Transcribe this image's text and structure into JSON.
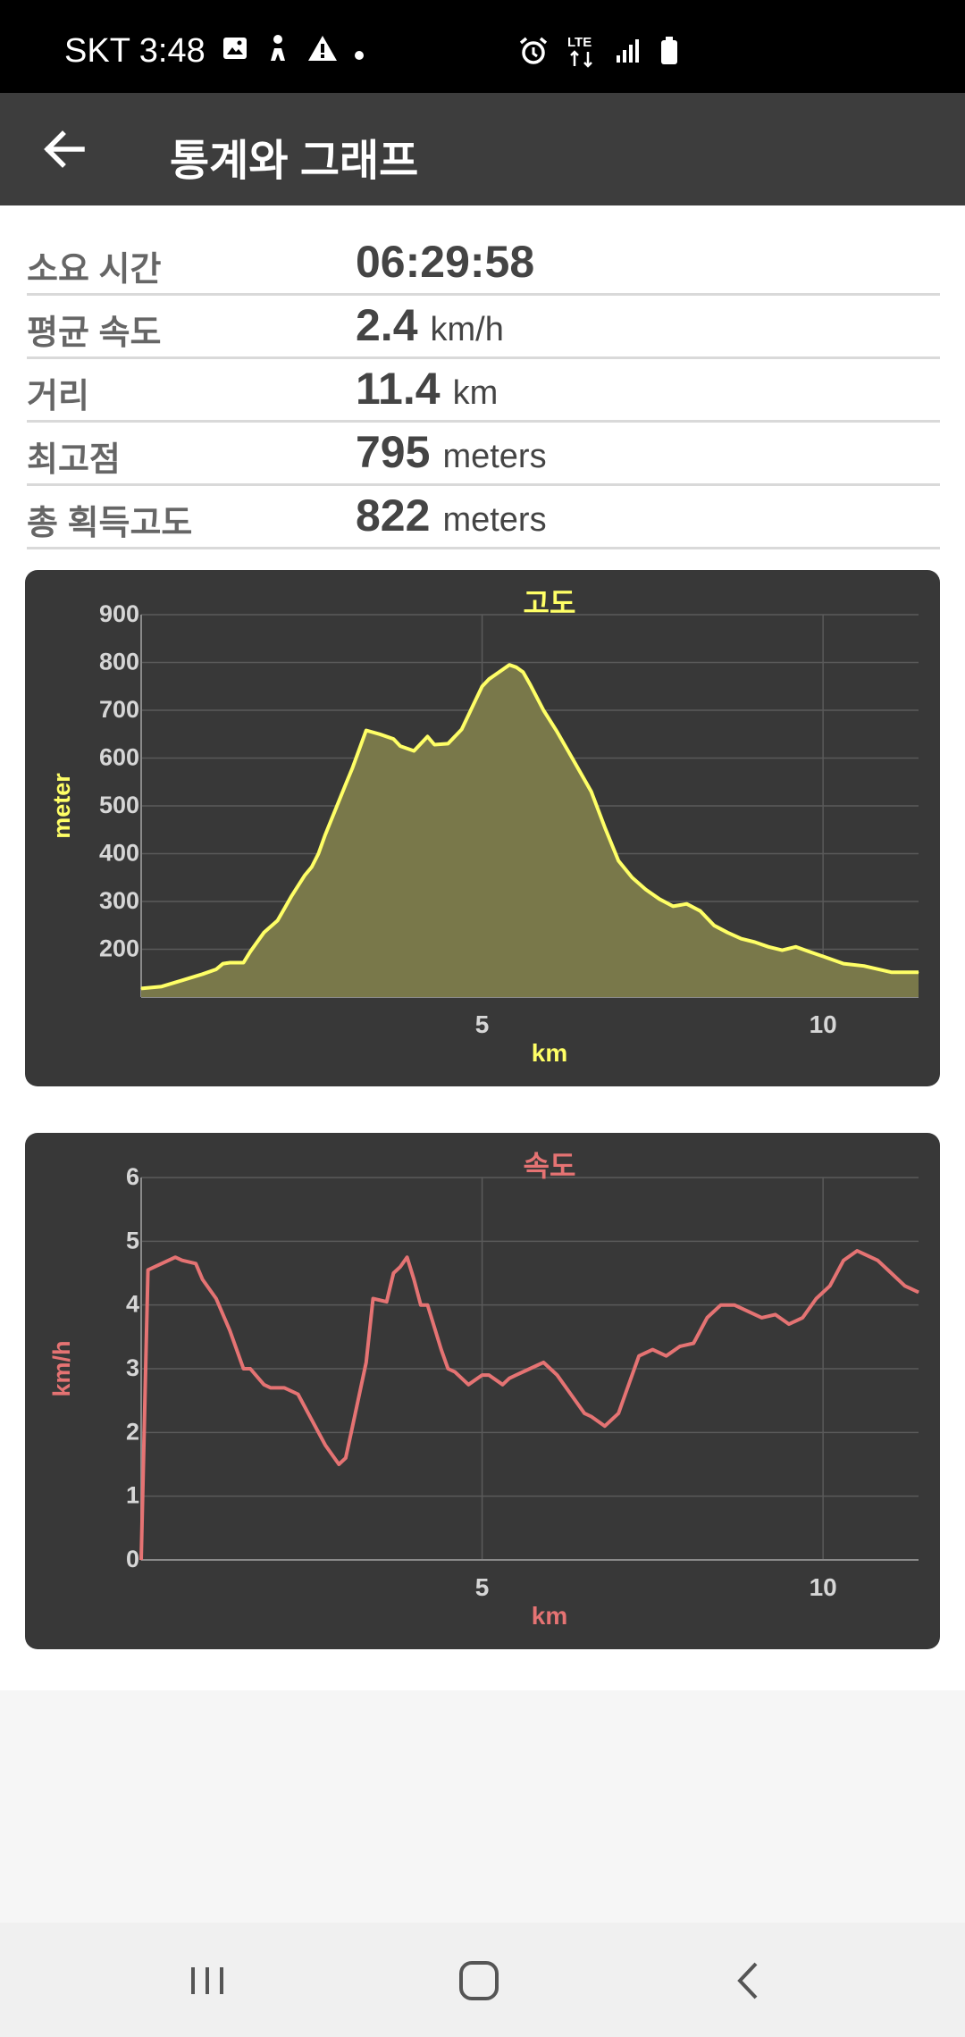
{
  "status_bar": {
    "carrier_time": "SKT 3:48",
    "left_icons": [
      "image-icon",
      "person-icon",
      "warning-icon",
      "dot-icon"
    ],
    "right_icons": [
      "alarm-icon",
      "lte-icon",
      "signal-icon",
      "battery-icon"
    ],
    "lte_label": "LTE"
  },
  "app_bar": {
    "title": "통계와 그래프",
    "back_icon": "arrow-left-icon"
  },
  "stats": [
    {
      "label": "소요 시간",
      "value": "06:29:58",
      "unit": ""
    },
    {
      "label": "평균 속도",
      "value": "2.4",
      "unit": "km/h"
    },
    {
      "label": "거리",
      "value": "11.4",
      "unit": "km"
    },
    {
      "label": "최고점",
      "value": "795",
      "unit": "meters"
    },
    {
      "label": "총 획득고도",
      "value": "822",
      "unit": "meters"
    }
  ],
  "chart_data": [
    {
      "type": "area",
      "title": "고도",
      "xlabel": "km",
      "ylabel": "meter",
      "xlim": [
        0,
        11.4
      ],
      "ylim": [
        100,
        900
      ],
      "xticks": [
        5,
        10
      ],
      "yticks": [
        200,
        300,
        400,
        500,
        600,
        700,
        800,
        900
      ],
      "grid": true,
      "color": "#ffff66",
      "fill": "#79784a",
      "x": [
        0,
        0.3,
        0.6,
        0.9,
        1.1,
        1.2,
        1.3,
        1.5,
        1.6,
        1.8,
        2.0,
        2.1,
        2.2,
        2.4,
        2.5,
        2.6,
        2.7,
        2.9,
        3.0,
        3.1,
        3.3,
        3.5,
        3.7,
        3.8,
        4.0,
        4.2,
        4.3,
        4.5,
        4.7,
        4.9,
        5.0,
        5.1,
        5.2,
        5.3,
        5.4,
        5.5,
        5.6,
        5.7,
        5.9,
        6.1,
        6.3,
        6.5,
        6.6,
        6.8,
        7.0,
        7.2,
        7.4,
        7.6,
        7.8,
        8.0,
        8.2,
        8.4,
        8.6,
        8.8,
        9.0,
        9.2,
        9.4,
        9.6,
        9.8,
        10.0,
        10.3,
        10.6,
        11.0,
        11.4
      ],
      "y": [
        118,
        122,
        135,
        148,
        158,
        170,
        172,
        172,
        195,
        235,
        260,
        285,
        310,
        355,
        372,
        400,
        440,
        510,
        545,
        580,
        658,
        650,
        640,
        625,
        615,
        645,
        628,
        630,
        660,
        720,
        750,
        765,
        775,
        785,
        795,
        790,
        780,
        755,
        700,
        655,
        605,
        555,
        530,
        455,
        385,
        350,
        325,
        305,
        290,
        295,
        280,
        250,
        235,
        222,
        215,
        205,
        198,
        205,
        195,
        185,
        170,
        165,
        152,
        152
      ]
    },
    {
      "type": "line",
      "title": "속도",
      "xlabel": "km",
      "ylabel": "km/h",
      "xlim": [
        0,
        11.4
      ],
      "ylim": [
        0,
        6
      ],
      "xticks": [
        5,
        10
      ],
      "yticks": [
        0,
        1,
        2,
        3,
        4,
        5,
        6
      ],
      "grid": true,
      "color": "#e57373",
      "x": [
        0,
        0.1,
        0.3,
        0.5,
        0.6,
        0.8,
        0.9,
        1.1,
        1.3,
        1.5,
        1.6,
        1.8,
        1.9,
        2.1,
        2.3,
        2.5,
        2.7,
        2.9,
        3.0,
        3.1,
        3.3,
        3.4,
        3.6,
        3.7,
        3.8,
        3.9,
        4.0,
        4.1,
        4.2,
        4.4,
        4.5,
        4.6,
        4.8,
        5.0,
        5.1,
        5.3,
        5.4,
        5.5,
        5.7,
        5.9,
        6.0,
        6.1,
        6.3,
        6.5,
        6.6,
        6.8,
        7.0,
        7.1,
        7.3,
        7.5,
        7.7,
        7.9,
        8.1,
        8.3,
        8.5,
        8.7,
        8.9,
        9.1,
        9.3,
        9.5,
        9.7,
        9.9,
        10.1,
        10.3,
        10.5,
        10.6,
        10.8,
        11.0,
        11.2,
        11.4
      ],
      "y": [
        0,
        4.55,
        4.65,
        4.75,
        4.7,
        4.65,
        4.4,
        4.1,
        3.6,
        3.0,
        3.0,
        2.75,
        2.7,
        2.7,
        2.6,
        2.2,
        1.8,
        1.5,
        1.6,
        2.1,
        3.1,
        4.1,
        4.05,
        4.5,
        4.6,
        4.75,
        4.4,
        4.0,
        4.0,
        3.3,
        3.0,
        2.95,
        2.75,
        2.9,
        2.9,
        2.75,
        2.85,
        2.9,
        3.0,
        3.1,
        3.0,
        2.9,
        2.6,
        2.3,
        2.25,
        2.1,
        2.3,
        2.6,
        3.2,
        3.3,
        3.2,
        3.35,
        3.4,
        3.8,
        4.0,
        4.0,
        3.9,
        3.8,
        3.85,
        3.7,
        3.8,
        4.1,
        4.3,
        4.7,
        4.85,
        4.8,
        4.7,
        4.5,
        4.3,
        4.2
      ]
    }
  ]
}
